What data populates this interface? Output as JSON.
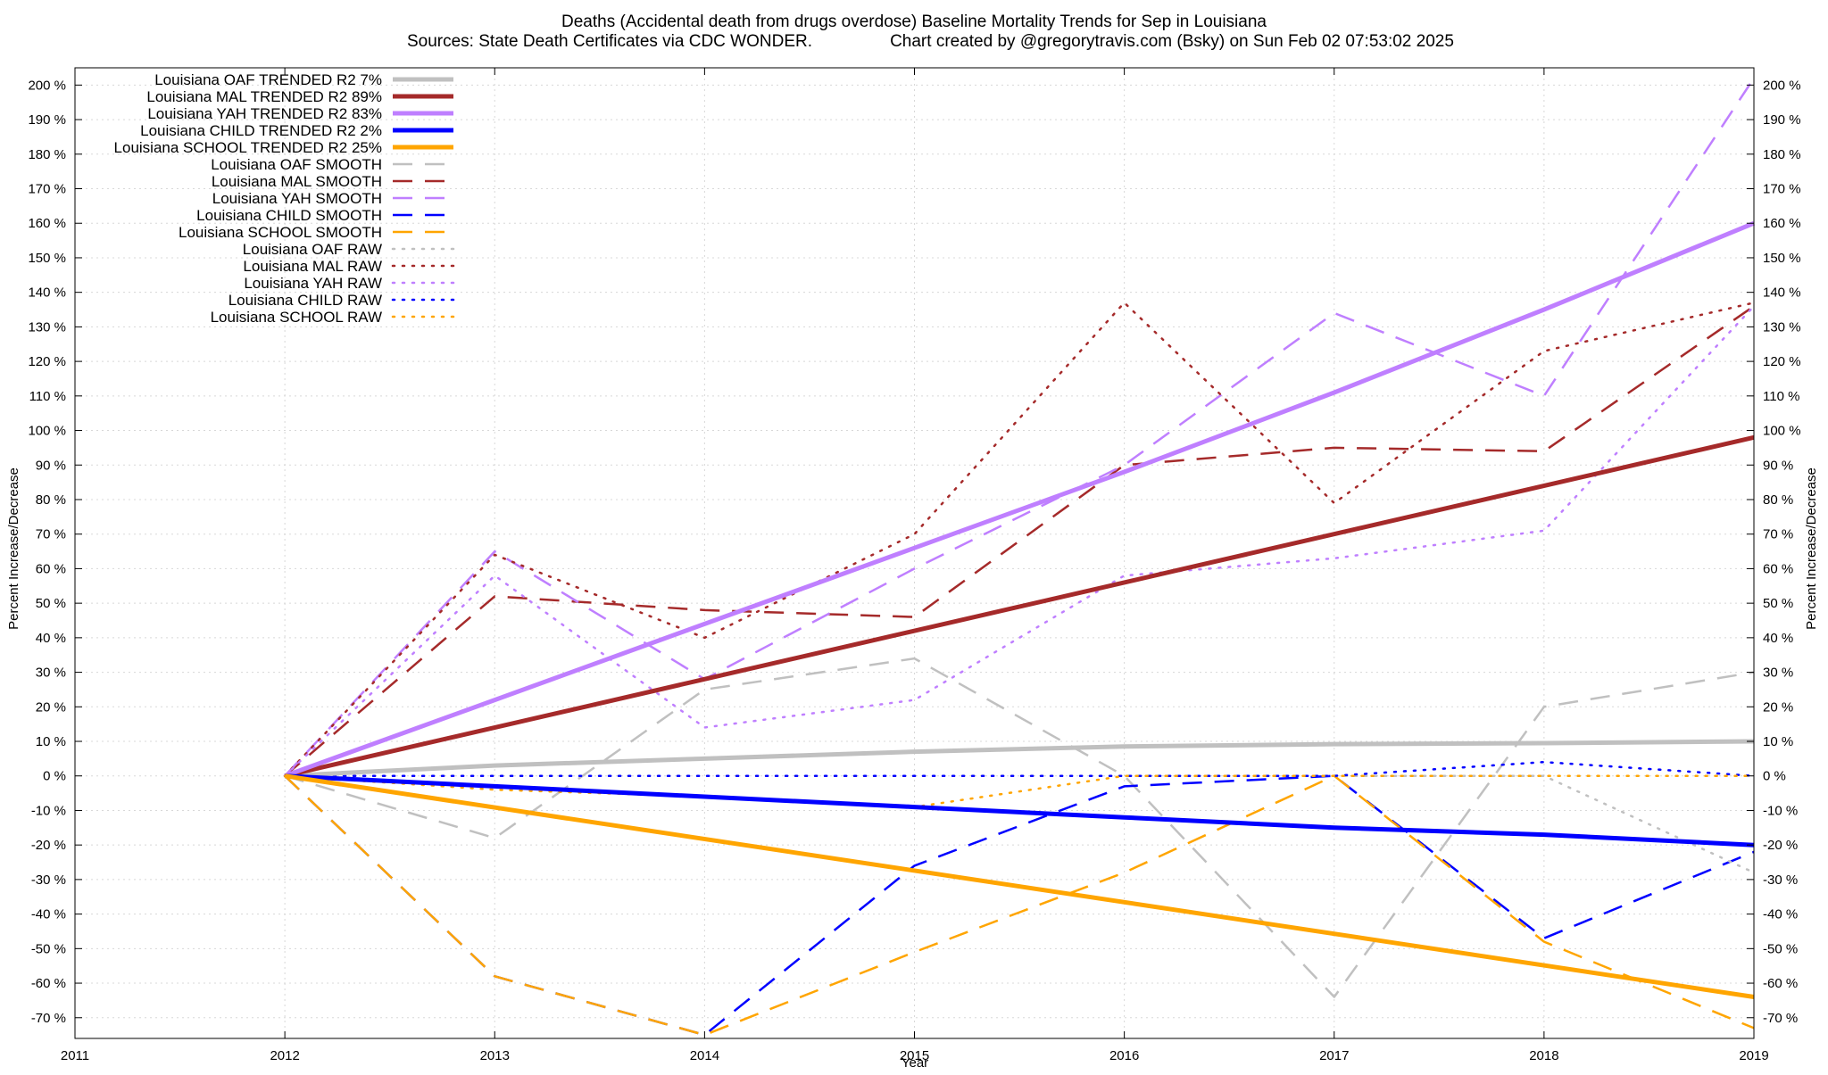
{
  "chart_data": {
    "type": "line",
    "title_line1": "Deaths (Accidental death from drugs overdose)  Baseline Mortality Trends for Sep in Louisiana",
    "title_line2_left": "Sources: State Death Certificates via CDC WONDER.",
    "title_line2_right": "Chart created by @gregorytravis.com (Bsky) on Sun Feb 02 07:53:02 2025",
    "xlabel": "Year",
    "ylabel_left": "Percent Increase/Decrease",
    "ylabel_right": "Percent Increase/Decrease",
    "xlim": [
      2011,
      2019
    ],
    "ylim": [
      -76,
      205
    ],
    "x_ticks": [
      2011,
      2012,
      2013,
      2014,
      2015,
      2016,
      2017,
      2018,
      2019
    ],
    "y_ticks": [
      200,
      190,
      180,
      170,
      160,
      150,
      140,
      130,
      120,
      110,
      100,
      90,
      80,
      70,
      60,
      50,
      40,
      30,
      20,
      10,
      0,
      -10,
      -20,
      -30,
      -40,
      -50,
      -60,
      -70
    ],
    "y_tick_suffix": " %",
    "grid": true,
    "legend_position": "top-left",
    "series": [
      {
        "name": "Louisiana OAF TRENDED R2",
        "r2": "7%",
        "style": "solid",
        "color": "#c0c0c0",
        "x": [
          2012,
          2013,
          2014,
          2015,
          2016,
          2017,
          2018,
          2019
        ],
        "values": [
          0,
          3,
          5,
          7,
          8.5,
          9.2,
          9.5,
          10
        ]
      },
      {
        "name": "Louisiana MAL TRENDED R2",
        "r2": "89%",
        "style": "solid",
        "color": "#a52a2a",
        "x": [
          2012,
          2019
        ],
        "values": [
          0,
          98
        ]
      },
      {
        "name": "Louisiana YAH TRENDED R2",
        "r2": "83%",
        "style": "solid",
        "color": "#bf7fff",
        "x": [
          2012,
          2013,
          2014,
          2015,
          2016,
          2017,
          2018,
          2019
        ],
        "values": [
          0,
          22,
          44,
          66,
          88,
          111,
          135,
          160
        ]
      },
      {
        "name": "Louisiana CHILD TRENDED R2",
        "r2": "2%",
        "style": "solid",
        "color": "#0000ff",
        "x": [
          2012,
          2013,
          2014,
          2015,
          2016,
          2017,
          2018,
          2019
        ],
        "values": [
          0,
          -3,
          -6,
          -9,
          -12,
          -15,
          -17,
          -20
        ]
      },
      {
        "name": "Louisiana SCHOOL TRENDED R2",
        "r2": "25%",
        "style": "solid",
        "color": "#ffa500",
        "x": [
          2012,
          2019
        ],
        "values": [
          0,
          -64
        ]
      },
      {
        "name": "Louisiana OAF SMOOTH",
        "style": "dashed",
        "color": "#c0c0c0",
        "x": [
          2012,
          2013,
          2014,
          2015,
          2016,
          2017,
          2018,
          2019
        ],
        "values": [
          0,
          -18,
          25,
          34,
          0,
          -64,
          20,
          30
        ]
      },
      {
        "name": "Louisiana MAL SMOOTH",
        "style": "dashed",
        "color": "#a52a2a",
        "x": [
          2012,
          2013,
          2014,
          2015,
          2016,
          2017,
          2018,
          2019
        ],
        "values": [
          0,
          52,
          48,
          46,
          90,
          95,
          94,
          136
        ]
      },
      {
        "name": "Louisiana YAH SMOOTH",
        "style": "dashed",
        "color": "#bf7fff",
        "x": [
          2012,
          2013,
          2014,
          2015,
          2016,
          2017,
          2018,
          2019
        ],
        "values": [
          0,
          65,
          28,
          60,
          90,
          134,
          110,
          202
        ]
      },
      {
        "name": "Louisiana CHILD SMOOTH",
        "style": "dashed",
        "color": "#0000ff",
        "x": [
          2012,
          2013,
          2014,
          2015,
          2016,
          2017,
          2018,
          2019
        ],
        "values": [
          0,
          -58,
          -75,
          -26,
          -3,
          0,
          -47,
          -22
        ]
      },
      {
        "name": "Louisiana SCHOOL SMOOTH",
        "style": "dashed",
        "color": "#ffa500",
        "x": [
          2012,
          2013,
          2014,
          2015,
          2016,
          2017,
          2018,
          2019
        ],
        "values": [
          0,
          -58,
          -75,
          -51,
          -28,
          0,
          -48,
          -73
        ]
      },
      {
        "name": "Louisiana OAF RAW",
        "style": "dotted",
        "color": "#c0c0c0",
        "x": [
          2012,
          2013,
          2014,
          2015,
          2016,
          2017,
          2018,
          2019
        ],
        "values": [
          0,
          0,
          0,
          0,
          0,
          0,
          0,
          -28
        ]
      },
      {
        "name": "Louisiana MAL RAW",
        "style": "dotted",
        "color": "#a52a2a",
        "x": [
          2012,
          2013,
          2014,
          2015,
          2016,
          2017,
          2018,
          2019
        ],
        "values": [
          0,
          64,
          40,
          70,
          137,
          79,
          123,
          137
        ]
      },
      {
        "name": "Louisiana YAH RAW",
        "style": "dotted",
        "color": "#bf7fff",
        "x": [
          2012,
          2013,
          2014,
          2015,
          2016,
          2017,
          2018,
          2019
        ],
        "values": [
          0,
          58,
          14,
          22,
          58,
          63,
          71,
          136
        ]
      },
      {
        "name": "Louisiana CHILD RAW",
        "style": "dotted",
        "color": "#0000ff",
        "x": [
          2012,
          2013,
          2014,
          2015,
          2016,
          2017,
          2018,
          2019
        ],
        "values": [
          0,
          0,
          0,
          0,
          0,
          0,
          4,
          0
        ]
      },
      {
        "name": "Louisiana SCHOOL RAW",
        "style": "dotted",
        "color": "#ffa500",
        "x": [
          2012,
          2013,
          2014,
          2015,
          2016,
          2017,
          2018,
          2019
        ],
        "values": [
          0,
          -4,
          -6,
          -9,
          0,
          0,
          0,
          0
        ]
      }
    ]
  }
}
